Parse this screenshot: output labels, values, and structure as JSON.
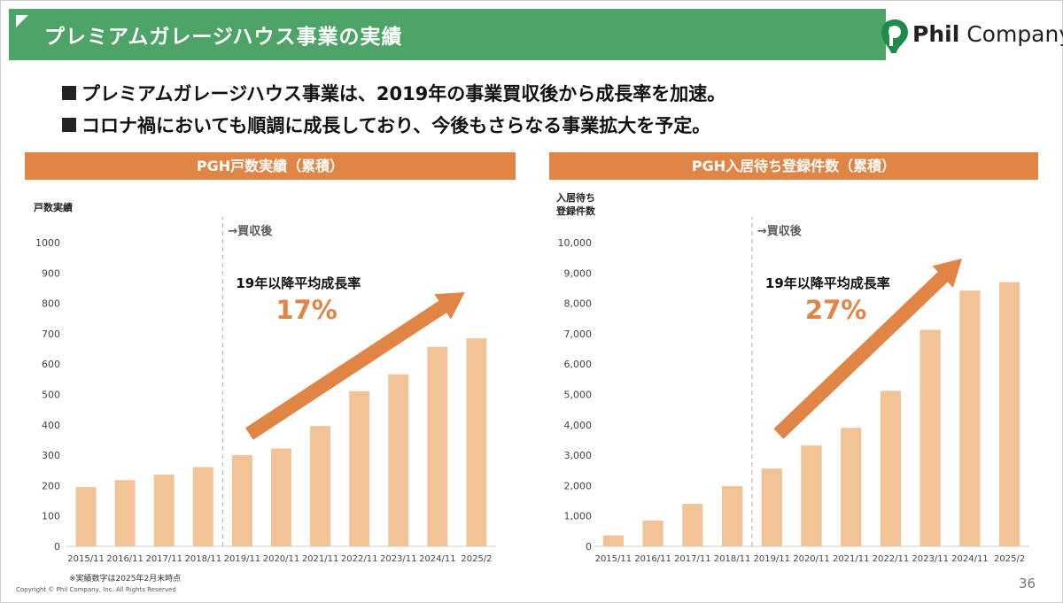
{
  "header": {
    "title": "プレミアムガレージハウス事業の実績"
  },
  "brand": {
    "name_bold": "Phil",
    "name_rest": " Company",
    "color": "#4ea368"
  },
  "bullets": [
    "プレミアムガレージハウス事業は、2019年の事業買収後から成長率を加速。",
    "コロナ禍においても順調に成長しており、今後もさらなる事業拡大を予定。"
  ],
  "colors": {
    "header": "#4ea368",
    "panel": "#e08546",
    "bar": "#f1c397",
    "arrow": "#e08546"
  },
  "chart_data": [
    {
      "type": "bar",
      "title": "PGH戸数実績（累積）",
      "ylabel": "戸数実績",
      "ylim": [
        0,
        1000
      ],
      "yticks": [
        "0",
        "100",
        "200",
        "300",
        "400",
        "500",
        "600",
        "700",
        "800",
        "900",
        "1000"
      ],
      "categories": [
        "2015/11",
        "2016/11",
        "2017/11",
        "2018/11",
        "2019/11",
        "2020/11",
        "2021/11",
        "2022/11",
        "2023/11",
        "2024/11",
        "2025/2"
      ],
      "values": [
        195,
        218,
        236,
        261,
        300,
        322,
        396,
        511,
        566,
        657,
        685
      ],
      "annotation": {
        "acquisition": "→買収後",
        "growth_label": "19年以降平均成長率",
        "growth_value": "17%"
      }
    },
    {
      "type": "bar",
      "title": "PGH入居待ち登録件数（累積）",
      "ylabel": [
        "入居待ち",
        "登録件数"
      ],
      "ylim": [
        0,
        10000
      ],
      "yticks": [
        "0",
        "1,000",
        "2,000",
        "3,000",
        "4,000",
        "5,000",
        "6,000",
        "7,000",
        "8,000",
        "9,000",
        "10,000"
      ],
      "categories": [
        "2015/11",
        "2016/11",
        "2017/11",
        "2018/11",
        "2019/11",
        "2020/11",
        "2021/11",
        "2022/11",
        "2023/11",
        "2024/11",
        "2025/2"
      ],
      "values": [
        360,
        850,
        1400,
        1980,
        2560,
        3320,
        3900,
        5120,
        7130,
        8420,
        8700
      ],
      "annotation": {
        "acquisition": "→買収後",
        "growth_label": "19年以降平均成長率",
        "growth_value": "27%"
      }
    }
  ],
  "footnote": "※実績数字は2025年2月末時点",
  "copyright": "Copyright © Phil Company, Inc.  All Rights Reserved",
  "page_number": "36"
}
